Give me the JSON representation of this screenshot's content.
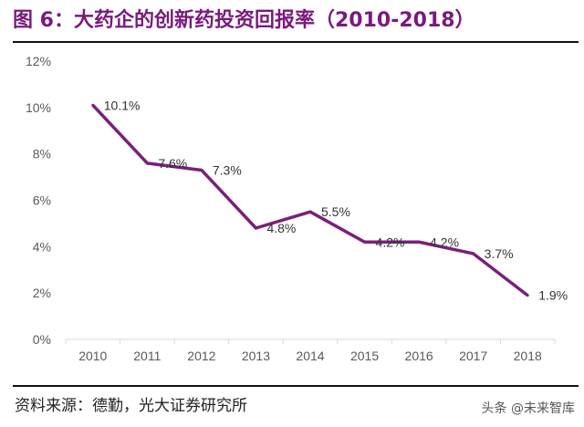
{
  "title": "图 6：大药企的创新药投资回报率（2010-2018）",
  "source": "资料来源：德勤，光大证券研究所",
  "watermark": "头条 @未来智库",
  "colors": {
    "title": "#7a1a7c",
    "line": "#7b1f7b",
    "axis_text": "#595959"
  },
  "chart_data": {
    "type": "line",
    "categories": [
      "2010",
      "2011",
      "2012",
      "2013",
      "2014",
      "2015",
      "2016",
      "2017",
      "2018"
    ],
    "series": [
      {
        "values": [
          10.1,
          7.6,
          7.3,
          4.8,
          5.5,
          4.2,
          4.2,
          3.7,
          1.9
        ]
      }
    ],
    "data_labels": [
      "10.1%",
      "7.6%",
      "7.3%",
      "4.8%",
      "5.5%",
      "4.2%",
      "4.2%",
      "3.7%",
      "1.9%"
    ],
    "yticks": [
      "0%",
      "2%",
      "4%",
      "6%",
      "8%",
      "10%",
      "12%"
    ],
    "ylim": [
      0,
      12
    ],
    "grid": false,
    "legend": "none"
  }
}
